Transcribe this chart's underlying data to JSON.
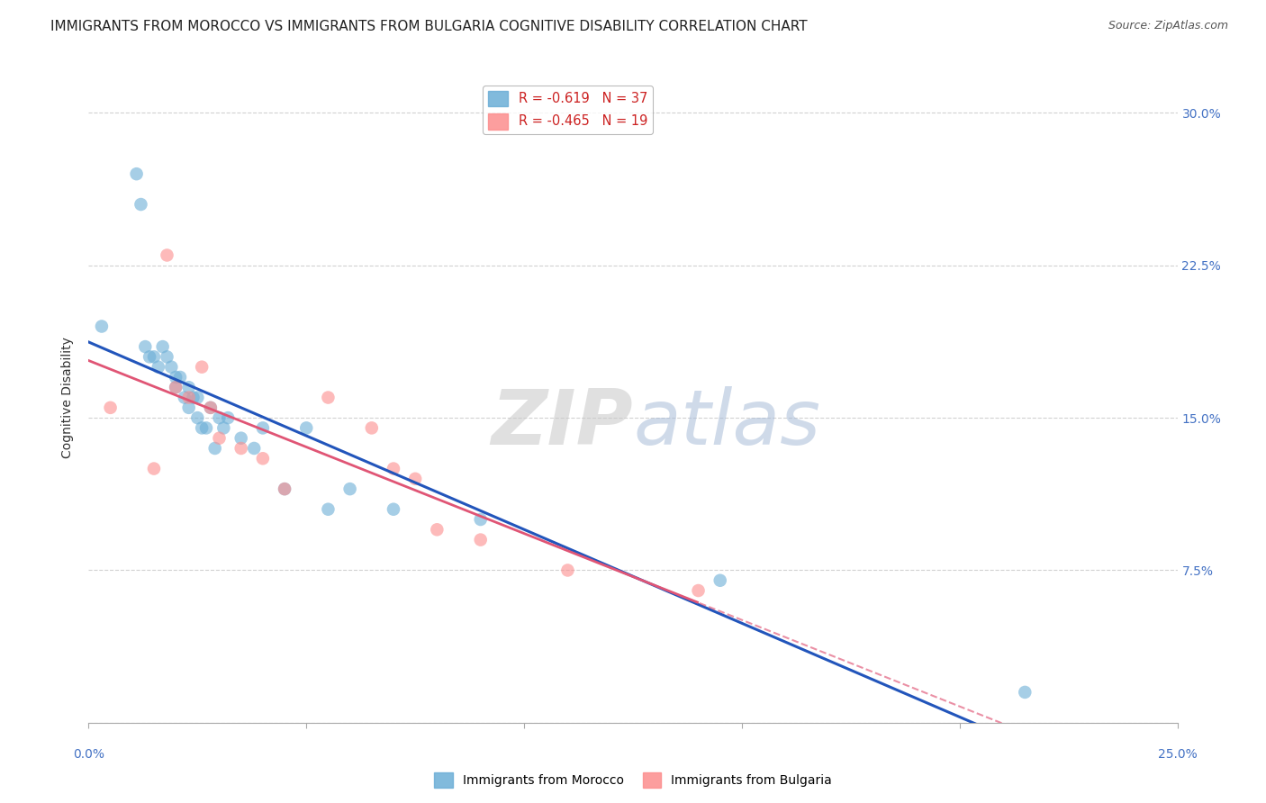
{
  "title": "IMMIGRANTS FROM MOROCCO VS IMMIGRANTS FROM BULGARIA COGNITIVE DISABILITY CORRELATION CHART",
  "source": "Source: ZipAtlas.com",
  "ylabel": "Cognitive Disability",
  "legend1_label": "R = -0.619   N = 37",
  "legend2_label": "R = -0.465   N = 19",
  "morocco_color": "#6baed6",
  "bulgaria_color": "#fc8d8d",
  "morocco_alpha": 0.6,
  "bulgaria_alpha": 0.6,
  "dot_size": 110,
  "watermark_zip": "ZIP",
  "watermark_atlas": "atlas",
  "xmin": 0.0,
  "xmax": 25.0,
  "ymin": 0.0,
  "ymax": 32.0,
  "yticks": [
    0.0,
    7.5,
    15.0,
    22.5,
    30.0
  ],
  "xtick_positions": [
    0.0,
    5.0,
    10.0,
    15.0,
    20.0,
    25.0
  ],
  "grid_color": "#cccccc",
  "bg_color": "#ffffff",
  "title_fontsize": 11,
  "source_fontsize": 9,
  "axis_label_fontsize": 10,
  "tick_fontsize": 10,
  "right_tick_color": "#4472c4",
  "morocco_x": [
    0.3,
    1.1,
    1.2,
    1.3,
    1.4,
    1.5,
    1.6,
    1.7,
    1.8,
    1.9,
    2.0,
    2.0,
    2.1,
    2.2,
    2.3,
    2.3,
    2.4,
    2.5,
    2.5,
    2.6,
    2.7,
    2.8,
    2.9,
    3.0,
    3.1,
    3.2,
    3.5,
    3.8,
    4.0,
    4.5,
    5.0,
    5.5,
    6.0,
    7.0,
    9.0,
    14.5,
    21.5
  ],
  "morocco_y": [
    19.5,
    27.0,
    25.5,
    18.5,
    18.0,
    18.0,
    17.5,
    18.5,
    18.0,
    17.5,
    17.0,
    16.5,
    17.0,
    16.0,
    16.5,
    15.5,
    16.0,
    16.0,
    15.0,
    14.5,
    14.5,
    15.5,
    13.5,
    15.0,
    14.5,
    15.0,
    14.0,
    13.5,
    14.5,
    11.5,
    14.5,
    10.5,
    11.5,
    10.5,
    10.0,
    7.0,
    1.5
  ],
  "bulgaria_x": [
    0.5,
    1.5,
    1.8,
    2.0,
    2.3,
    2.6,
    2.8,
    3.0,
    3.5,
    4.0,
    4.5,
    5.5,
    6.5,
    7.0,
    7.5,
    8.0,
    9.0,
    11.0,
    14.0
  ],
  "bulgaria_y": [
    15.5,
    12.5,
    23.0,
    16.5,
    16.0,
    17.5,
    15.5,
    14.0,
    13.5,
    13.0,
    11.5,
    16.0,
    14.5,
    12.5,
    12.0,
    9.5,
    9.0,
    7.5,
    6.5
  ]
}
